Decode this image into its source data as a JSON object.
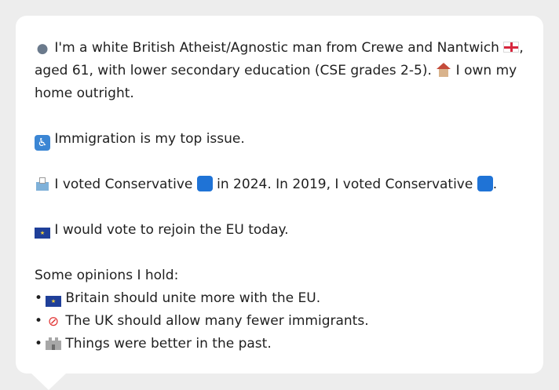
{
  "message": {
    "profile_line_1": "I'm a white British Atheist/Agnostic man from Crewe and Nantwich",
    "profile_line_1_end": ",",
    "profile_line_2": "aged 61, with lower secondary education (CSE grades 2-5).",
    "profile_line_2b": "I own my",
    "profile_line_3": "home outright.",
    "issue_line": "Immigration is my top issue.",
    "vote_line_a": "I voted Conservative",
    "vote_line_b": "in 2024. In 2019, I voted Conservative",
    "vote_line_c": ".",
    "eu_line": "I would vote to rejoin the EU today.",
    "opinions_heading": "Some opinions I hold:",
    "opinions": [
      "Britain should unite more with the EU.",
      "The UK should allow many fewer immigrants.",
      "Things were better in the past."
    ],
    "bullet": "•"
  },
  "icons": {
    "person": "person-silhouette-icon",
    "england_flag": "england-flag-icon",
    "house": "house-icon",
    "issue": "wheelchair-box-icon",
    "ballot": "ballot-box-icon",
    "conservative": "blue-square-icon",
    "eu_flag": "eu-flag-icon",
    "prohibited": "prohibited-icon",
    "castle": "castle-icon"
  },
  "colors": {
    "background": "#ededed",
    "card": "#ffffff",
    "text": "#1f1f1f",
    "conservative_blue": "#1f73d6",
    "issue_blue": "#3b86d4",
    "prohibited_red": "#e03131"
  }
}
